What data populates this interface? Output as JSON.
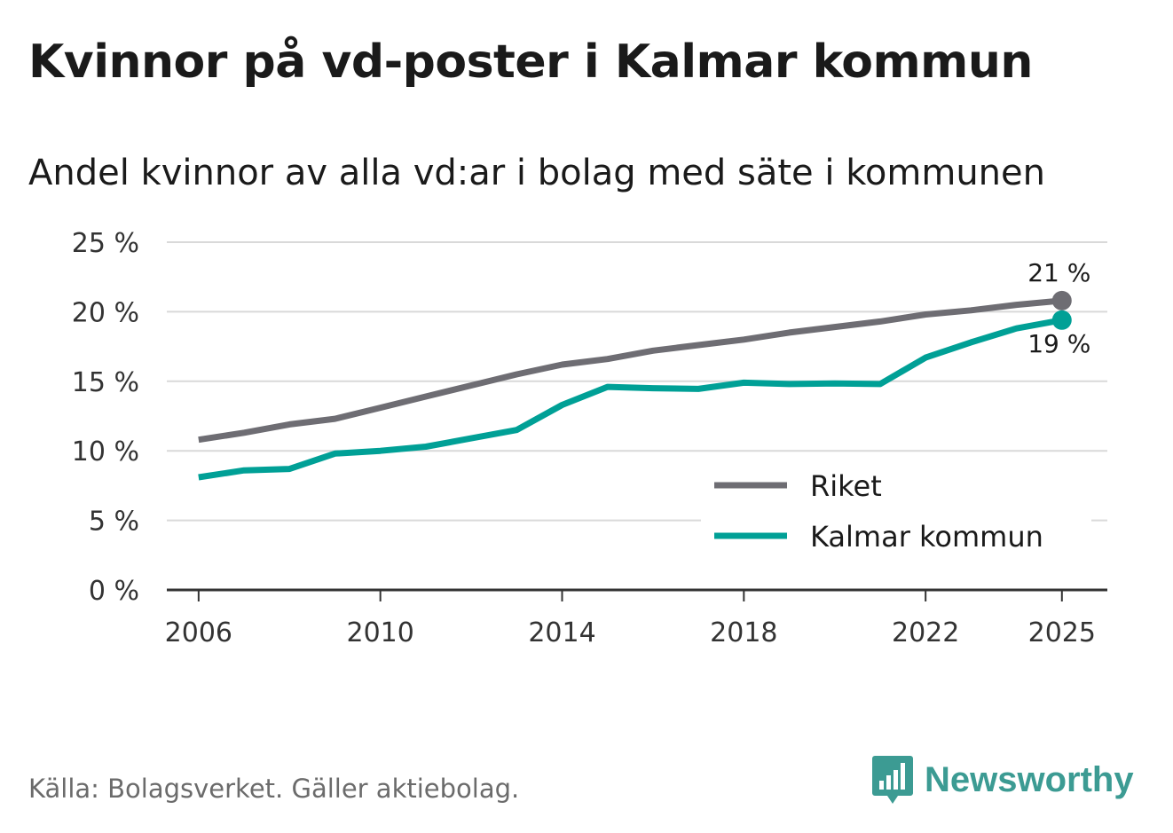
{
  "title": "Kvinnor på vd-poster i Kalmar kommun",
  "subtitle": "Andel kvinnor av alla vd:ar i bolag med säte i kommunen",
  "source": "Källa: Bolagsverket. Gäller aktiebolag.",
  "brand": {
    "name": "Newsworthy",
    "icon": "newsworthy-logo-icon",
    "color": "#3c9b93"
  },
  "colors": {
    "riket": "#6e6d73",
    "kalmar": "#00a096",
    "grid": "#d9d9d9",
    "axis": "#333333"
  },
  "chart_data": {
    "type": "line",
    "title": "Kvinnor på vd-poster i Kalmar kommun",
    "subtitle": "Andel kvinnor av alla vd:ar i bolag med säte i kommunen",
    "xlabel": "",
    "ylabel": "",
    "ylim": [
      0,
      25
    ],
    "xlim": [
      2005.3,
      2026.0
    ],
    "y_ticks": [
      0,
      5,
      10,
      15,
      20,
      25
    ],
    "y_tick_labels": [
      "0 %",
      "5 %",
      "10 %",
      "15 %",
      "20 %",
      "25 %"
    ],
    "x_ticks": [
      2006,
      2010,
      2014,
      2018,
      2022,
      2025
    ],
    "x_tick_labels": [
      "2006",
      "2010",
      "2014",
      "2018",
      "2022",
      "2025"
    ],
    "grid": true,
    "legend_position": "lower-right",
    "x": [
      2006,
      2007,
      2008,
      2009,
      2010,
      2011,
      2012,
      2013,
      2014,
      2015,
      2016,
      2017,
      2018,
      2019,
      2020,
      2021,
      2022,
      2023,
      2024,
      2025
    ],
    "series": [
      {
        "name": "Riket",
        "color": "#6e6d73",
        "values": [
          10.8,
          11.3,
          11.9,
          12.3,
          13.1,
          13.9,
          14.7,
          15.5,
          16.2,
          16.6,
          17.2,
          17.6,
          18.0,
          18.5,
          18.9,
          19.3,
          19.8,
          20.1,
          20.5,
          20.8
        ],
        "end_label": "21 %"
      },
      {
        "name": "Kalmar kommun",
        "color": "#00a096",
        "values": [
          8.1,
          8.6,
          8.7,
          9.8,
          10.0,
          10.3,
          10.9,
          11.5,
          13.3,
          14.6,
          14.5,
          14.45,
          14.9,
          14.8,
          14.85,
          14.8,
          16.7,
          17.8,
          18.8,
          19.4
        ],
        "end_label": "19 %"
      }
    ]
  }
}
